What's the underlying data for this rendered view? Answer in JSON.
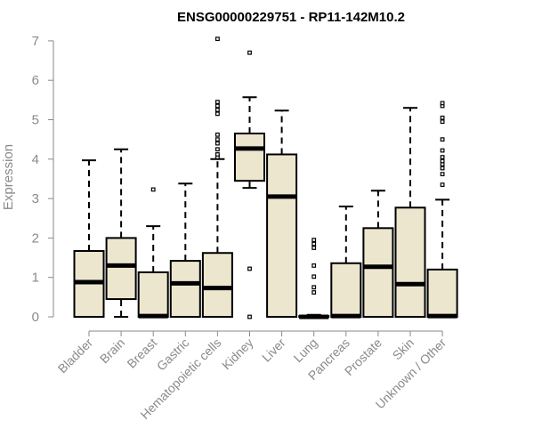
{
  "chart_data": {
    "type": "boxplot",
    "title": "ENSG00000229751 - RP11-142M10.2",
    "ylabel": "Expression",
    "xlabel": "",
    "ylim": [
      0,
      7
    ],
    "yticks": [
      0,
      1,
      2,
      3,
      4,
      5,
      6,
      7
    ],
    "box_fill": "#ede6cf",
    "categories": [
      "Bladder",
      "Brain",
      "Breast",
      "Gastric",
      "Hematopoietic cells",
      "Kidney",
      "Liver",
      "Lung",
      "Pancreas",
      "Prostate",
      "Skin",
      "Unknown / Other"
    ],
    "boxes": [
      {
        "category": "Bladder",
        "whisker_low": 0,
        "q1": 0,
        "median": 0.88,
        "q3": 1.67,
        "whisker_high": 3.97,
        "outliers": []
      },
      {
        "category": "Brain",
        "whisker_low": 0,
        "q1": 0.45,
        "median": 1.3,
        "q3": 2.0,
        "whisker_high": 4.25,
        "outliers": []
      },
      {
        "category": "Breast",
        "whisker_low": 0,
        "q1": 0,
        "median": 0.02,
        "q3": 1.13,
        "whisker_high": 2.3,
        "outliers": [
          3.23
        ]
      },
      {
        "category": "Gastric",
        "whisker_low": 0,
        "q1": 0,
        "median": 0.85,
        "q3": 1.42,
        "whisker_high": 3.38,
        "outliers": []
      },
      {
        "category": "Hematopoietic cells",
        "whisker_low": 0,
        "q1": 0,
        "median": 0.73,
        "q3": 1.62,
        "whisker_high": 4.0,
        "outliers": [
          4.05,
          4.12,
          4.25,
          4.4,
          4.5,
          4.62,
          5.15,
          5.25,
          5.35,
          5.45,
          7.05
        ]
      },
      {
        "category": "Kidney",
        "whisker_low": 3.27,
        "q1": 3.45,
        "median": 4.27,
        "q3": 4.65,
        "whisker_high": 5.57,
        "outliers": [
          0,
          1.22,
          6.7
        ]
      },
      {
        "category": "Liver",
        "whisker_low": 0,
        "q1": 0,
        "median": 3.05,
        "q3": 4.12,
        "whisker_high": 5.23,
        "outliers": []
      },
      {
        "category": "Lung",
        "whisker_low": 0,
        "q1": 0,
        "median": 0,
        "q3": 0.02,
        "whisker_high": 0.05,
        "outliers": [
          0.62,
          0.75,
          1.02,
          1.3,
          1.75,
          1.85,
          1.95
        ]
      },
      {
        "category": "Pancreas",
        "whisker_low": 0,
        "q1": 0,
        "median": 0.02,
        "q3": 1.36,
        "whisker_high": 2.8,
        "outliers": []
      },
      {
        "category": "Prostate",
        "whisker_low": 0,
        "q1": 0,
        "median": 1.27,
        "q3": 2.25,
        "whisker_high": 3.2,
        "outliers": []
      },
      {
        "category": "Skin",
        "whisker_low": 0,
        "q1": 0,
        "median": 0.83,
        "q3": 2.77,
        "whisker_high": 5.3,
        "outliers": []
      },
      {
        "category": "Unknown / Other",
        "whisker_low": 0,
        "q1": 0,
        "median": 0.02,
        "q3": 1.2,
        "whisker_high": 2.97,
        "outliers": [
          3.35,
          3.62,
          3.77,
          3.87,
          3.95,
          4.05,
          4.22,
          4.5,
          4.95,
          5.05,
          5.35,
          5.42
        ]
      }
    ]
  }
}
